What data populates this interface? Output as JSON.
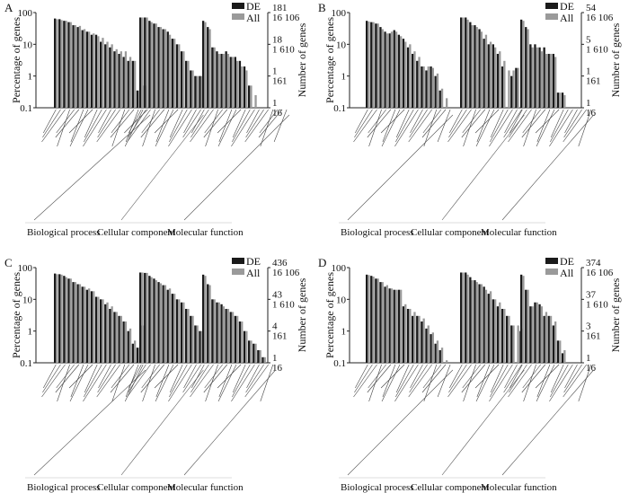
{
  "figure": {
    "left_axis_title": "Percentage of genes",
    "right_axis_title": "Number of genes",
    "legend": [
      "DE",
      "All"
    ],
    "group_names": [
      "Biological process",
      "Cellular component",
      "Molecular function"
    ],
    "y_ticks_left": [
      "100",
      "10",
      "1",
      "0.1"
    ],
    "category_labels_note": "GO term labels are too small to read; bars shown unlabeled"
  },
  "chart_data": [
    {
      "panel": "A",
      "type": "bar",
      "yscale": "log",
      "ylim": [
        0.1,
        100
      ],
      "right_ticks": [
        [
          "181",
          "16 106"
        ],
        [
          "18",
          "1 610"
        ],
        [
          "1",
          "161"
        ],
        [
          "1",
          "16"
        ]
      ],
      "series_names": [
        "DE",
        "All"
      ],
      "groups": [
        {
          "name": "Biological process",
          "pairs": [
            [
              65,
              62
            ],
            [
              62,
              58
            ],
            [
              55,
              55
            ],
            [
              50,
              50
            ],
            [
              40,
              40
            ],
            [
              35,
              38
            ],
            [
              28,
              30
            ],
            [
              25,
              25
            ],
            [
              20,
              22
            ],
            [
              20,
              18
            ],
            [
              12,
              16
            ],
            [
              10,
              12
            ],
            [
              8,
              10
            ],
            [
              6,
              7
            ],
            [
              5,
              6
            ],
            [
              4,
              6
            ],
            [
              3,
              4
            ],
            [
              3,
              3
            ],
            [
              0.35,
              0.35
            ],
            [
              0,
              0.5
            ],
            [
              0.5,
              0
            ]
          ]
        },
        {
          "name": "Cellular component",
          "pairs": [
            [
              70,
              70
            ],
            [
              70,
              70
            ],
            [
              55,
              50
            ],
            [
              45,
              45
            ],
            [
              35,
              35
            ],
            [
              30,
              30
            ],
            [
              25,
              20
            ],
            [
              15,
              15
            ],
            [
              10,
              10
            ],
            [
              6,
              6
            ],
            [
              3,
              3
            ],
            [
              1.5,
              1.5
            ],
            [
              1,
              1
            ],
            [
              1,
              1
            ]
          ]
        },
        {
          "name": "Molecular function",
          "pairs": [
            [
              55,
              50
            ],
            [
              35,
              30
            ],
            [
              8,
              8
            ],
            [
              6,
              5
            ],
            [
              5,
              5
            ],
            [
              6,
              5
            ],
            [
              4,
              4
            ],
            [
              4,
              3
            ],
            [
              3,
              2
            ],
            [
              2,
              1.5
            ],
            [
              0.5,
              0.5
            ],
            [
              0,
              0.25
            ],
            [
              0,
              0.1
            ],
            [
              0,
              0.1
            ],
            [
              0,
              0.1
            ],
            [
              0,
              0.1
            ],
            [
              0,
              0.1
            ],
            [
              0,
              0.1
            ],
            [
              0,
              0.1
            ]
          ]
        }
      ]
    },
    {
      "panel": "B",
      "type": "bar",
      "yscale": "log",
      "ylim": [
        0.1,
        100
      ],
      "right_ticks": [
        [
          "54",
          "16 106"
        ],
        [
          "5",
          "1 610"
        ],
        [
          "1",
          "161"
        ],
        [
          "1",
          "16"
        ]
      ],
      "series_names": [
        "DE",
        "All"
      ],
      "groups": [
        {
          "name": "Biological process",
          "pairs": [
            [
              55,
              52
            ],
            [
              50,
              50
            ],
            [
              45,
              45
            ],
            [
              35,
              30
            ],
            [
              25,
              22
            ],
            [
              22,
              25
            ],
            [
              28,
              25
            ],
            [
              20,
              18
            ],
            [
              15,
              12
            ],
            [
              8,
              10
            ],
            [
              5,
              6
            ],
            [
              3,
              4
            ],
            [
              2,
              2
            ],
            [
              1.5,
              2
            ],
            [
              2,
              1.8
            ],
            [
              1,
              1.2
            ],
            [
              0.35,
              0.4
            ],
            [
              0,
              0.2
            ],
            [
              0,
              0.1
            ]
          ]
        },
        {
          "name": "Cellular component",
          "pairs": [
            [
              70,
              70
            ],
            [
              70,
              60
            ],
            [
              50,
              40
            ],
            [
              40,
              35
            ],
            [
              30,
              25
            ],
            [
              15,
              20
            ],
            [
              10,
              12
            ],
            [
              10,
              8
            ],
            [
              5,
              6
            ],
            [
              2,
              3
            ],
            [
              0,
              1.5
            ],
            [
              1,
              1.5
            ],
            [
              1.8,
              1.8
            ],
            [
              0,
              1.5
            ]
          ]
        },
        {
          "name": "Molecular function",
          "pairs": [
            [
              60,
              55
            ],
            [
              35,
              30
            ],
            [
              10,
              8
            ],
            [
              10,
              8
            ],
            [
              8,
              6
            ],
            [
              8,
              5
            ],
            [
              5,
              5
            ],
            [
              5,
              4
            ],
            [
              0.3,
              0.3
            ],
            [
              0.3,
              0.25
            ],
            [
              0,
              0.1
            ],
            [
              0,
              0.1
            ],
            [
              0,
              0.1
            ],
            [
              0,
              0.1
            ],
            [
              0,
              0.1
            ],
            [
              0,
              0.1
            ]
          ]
        }
      ]
    },
    {
      "panel": "C",
      "type": "bar",
      "yscale": "log",
      "ylim": [
        0.1,
        100
      ],
      "right_ticks": [
        [
          "436",
          "16 106"
        ],
        [
          "43",
          "1 610"
        ],
        [
          "4",
          "161"
        ],
        [
          "1",
          "16"
        ]
      ],
      "series_names": [
        "DE",
        "All"
      ],
      "groups": [
        {
          "name": "Biological process",
          "pairs": [
            [
              65,
              62
            ],
            [
              62,
              60
            ],
            [
              55,
              50
            ],
            [
              45,
              45
            ],
            [
              35,
              35
            ],
            [
              30,
              30
            ],
            [
              25,
              25
            ],
            [
              20,
              22
            ],
            [
              18,
              18
            ],
            [
              12,
              12
            ],
            [
              10,
              10
            ],
            [
              7,
              8
            ],
            [
              5,
              6
            ],
            [
              4,
              4
            ],
            [
              3,
              3
            ],
            [
              2,
              2
            ],
            [
              1,
              1.2
            ],
            [
              0.4,
              0.5
            ],
            [
              0.3,
              0.3
            ],
            [
              1.5,
              1.5
            ]
          ]
        },
        {
          "name": "Cellular component",
          "pairs": [
            [
              70,
              70
            ],
            [
              68,
              68
            ],
            [
              55,
              50
            ],
            [
              45,
              40
            ],
            [
              35,
              32
            ],
            [
              28,
              28
            ],
            [
              20,
              22
            ],
            [
              15,
              15
            ],
            [
              10,
              10
            ],
            [
              8,
              8
            ],
            [
              5,
              5
            ],
            [
              3,
              3
            ],
            [
              1.5,
              1.5
            ],
            [
              1,
              1
            ]
          ]
        },
        {
          "name": "Molecular function",
          "pairs": [
            [
              60,
              55
            ],
            [
              30,
              28
            ],
            [
              10,
              10
            ],
            [
              8,
              8
            ],
            [
              7,
              6
            ],
            [
              5,
              5
            ],
            [
              4,
              4
            ],
            [
              3,
              3
            ],
            [
              2,
              2
            ],
            [
              1,
              1
            ],
            [
              0.5,
              0.5
            ],
            [
              0.4,
              0.4
            ],
            [
              0.25,
              0.25
            ],
            [
              0.15,
              0.15
            ],
            [
              0,
              0.1
            ],
            [
              0,
              0.1
            ]
          ]
        }
      ]
    },
    {
      "panel": "D",
      "type": "bar",
      "yscale": "log",
      "ylim": [
        0.1,
        100
      ],
      "right_ticks": [
        [
          "374",
          "16 106"
        ],
        [
          "37",
          "1 610"
        ],
        [
          "3",
          "161"
        ],
        [
          "1",
          "16"
        ]
      ],
      "series_names": [
        "DE",
        "All"
      ],
      "groups": [
        {
          "name": "Biological process",
          "pairs": [
            [
              60,
              58
            ],
            [
              55,
              52
            ],
            [
              45,
              45
            ],
            [
              35,
              35
            ],
            [
              25,
              28
            ],
            [
              22,
              22
            ],
            [
              20,
              20
            ],
            [
              20,
              20
            ],
            [
              6,
              7
            ],
            [
              5,
              5
            ],
            [
              3,
              4
            ],
            [
              3,
              3
            ],
            [
              2,
              2.5
            ],
            [
              1.2,
              1.5
            ],
            [
              0.8,
              0.9
            ],
            [
              0.4,
              0.5
            ],
            [
              0.25,
              0.3
            ],
            [
              0,
              0.12
            ],
            [
              0,
              0.1
            ]
          ]
        },
        {
          "name": "Cellular component",
          "pairs": [
            [
              70,
              70
            ],
            [
              70,
              60
            ],
            [
              50,
              40
            ],
            [
              40,
              35
            ],
            [
              30,
              30
            ],
            [
              25,
              20
            ],
            [
              15,
              18
            ],
            [
              10,
              10
            ],
            [
              6,
              8
            ],
            [
              5,
              5
            ],
            [
              3,
              3
            ],
            [
              1.5,
              1.5
            ],
            [
              0,
              1.5
            ],
            [
              1,
              1.2
            ]
          ]
        },
        {
          "name": "Molecular function",
          "pairs": [
            [
              60,
              55
            ],
            [
              20,
              20
            ],
            [
              6,
              6
            ],
            [
              8,
              8
            ],
            [
              7,
              6
            ],
            [
              3,
              4
            ],
            [
              3,
              3
            ],
            [
              1.5,
              2
            ],
            [
              0.5,
              0.5
            ],
            [
              0.2,
              0.25
            ],
            [
              0,
              0.1
            ],
            [
              0,
              0.1
            ],
            [
              0,
              0.1
            ],
            [
              0,
              0.1
            ],
            [
              0,
              0.1
            ],
            [
              0,
              0.1
            ]
          ]
        }
      ]
    }
  ]
}
